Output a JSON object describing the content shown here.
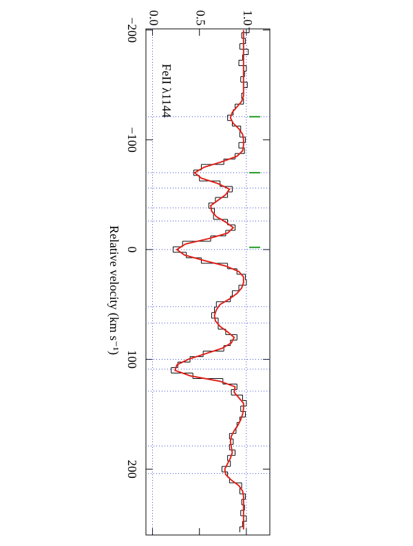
{
  "chart_data": {
    "type": "line",
    "annotation": "FeII λ1144",
    "x_label": "Relative velocity (km s⁻¹)",
    "xlim": [
      -201,
      260
    ],
    "xticks": [
      {
        "value": -200,
        "label": "−200"
      },
      {
        "value": -100,
        "label": "−100"
      },
      0,
      100,
      200
    ],
    "ylim": [
      -0.07,
      1.25
    ],
    "yticks": [
      {
        "value": 0,
        "label": "0.0"
      },
      0.5,
      {
        "value": 1,
        "label": "1.0"
      }
    ],
    "grid_y": [
      0,
      1
    ],
    "components": [
      -121,
      -70,
      -56,
      -38,
      -26,
      0,
      52,
      67,
      100,
      109,
      129,
      179,
      204
    ],
    "markers": [
      -121,
      -70,
      -2
    ],
    "marker_color": "#1a9a1a",
    "component_color": "#3344cc",
    "x": [
      -200,
      -195,
      -190,
      -185,
      -180,
      -175,
      -170,
      -165,
      -160,
      -155,
      -150,
      -145,
      -140,
      -135,
      -130,
      -125,
      -120,
      -115,
      -110,
      -105,
      -100,
      -95,
      -90,
      -85,
      -80,
      -75,
      -70,
      -65,
      -60,
      -55,
      -50,
      -45,
      -40,
      -35,
      -30,
      -25,
      -20,
      -15,
      -10,
      -5,
      0,
      5,
      10,
      15,
      20,
      25,
      30,
      35,
      40,
      45,
      50,
      55,
      60,
      65,
      70,
      75,
      80,
      85,
      90,
      95,
      100,
      105,
      110,
      115,
      120,
      125,
      130,
      135,
      140,
      145,
      150,
      155,
      160,
      165,
      170,
      175,
      180,
      185,
      190,
      195,
      200,
      205,
      210,
      215,
      220,
      225,
      230,
      235,
      240,
      245,
      250,
      255
    ],
    "series": [
      {
        "name": "data",
        "color": "#000000",
        "step": true,
        "values": [
          1.03,
          0.95,
          0.99,
          0.93,
          1.02,
          0.96,
          0.92,
          1.0,
          0.98,
          0.94,
          1.01,
          0.97,
          0.95,
          0.97,
          0.88,
          0.86,
          0.8,
          0.85,
          0.94,
          0.93,
          0.99,
          0.92,
          0.98,
          0.88,
          0.76,
          0.52,
          0.44,
          0.5,
          0.72,
          0.85,
          0.8,
          0.67,
          0.6,
          0.66,
          0.65,
          0.8,
          0.88,
          0.78,
          0.62,
          0.32,
          0.22,
          0.36,
          0.52,
          0.8,
          0.9,
          0.99,
          1.0,
          0.92,
          0.85,
          0.83,
          0.68,
          0.66,
          0.63,
          0.7,
          0.7,
          0.78,
          0.9,
          0.83,
          0.76,
          0.54,
          0.4,
          0.27,
          0.2,
          0.43,
          0.75,
          0.9,
          0.84,
          0.96,
          1.0,
          0.94,
          0.99,
          0.93,
          0.9,
          0.89,
          0.82,
          0.86,
          0.82,
          0.88,
          0.8,
          0.83,
          0.74,
          0.8,
          0.82,
          0.95,
          0.93,
          0.99,
          0.95,
          0.98,
          0.94,
          1.0,
          0.96,
          0.93
        ]
      },
      {
        "name": "fit",
        "color": "#e0201a",
        "step": false,
        "values": [
          0.97,
          0.97,
          0.97,
          0.97,
          0.97,
          0.97,
          0.97,
          0.97,
          0.97,
          0.97,
          0.97,
          0.97,
          0.97,
          0.95,
          0.9,
          0.85,
          0.83,
          0.86,
          0.92,
          0.96,
          0.97,
          0.97,
          0.96,
          0.9,
          0.74,
          0.55,
          0.45,
          0.52,
          0.7,
          0.82,
          0.78,
          0.7,
          0.62,
          0.63,
          0.68,
          0.78,
          0.86,
          0.8,
          0.6,
          0.35,
          0.26,
          0.34,
          0.55,
          0.78,
          0.92,
          0.97,
          0.97,
          0.95,
          0.9,
          0.82,
          0.72,
          0.68,
          0.66,
          0.67,
          0.72,
          0.8,
          0.87,
          0.84,
          0.74,
          0.56,
          0.38,
          0.26,
          0.24,
          0.4,
          0.72,
          0.88,
          0.87,
          0.92,
          0.97,
          0.97,
          0.96,
          0.94,
          0.91,
          0.87,
          0.84,
          0.83,
          0.84,
          0.85,
          0.83,
          0.8,
          0.77,
          0.78,
          0.84,
          0.92,
          0.96,
          0.97,
          0.97,
          0.97,
          0.97,
          0.97,
          0.97,
          0.97
        ]
      }
    ]
  }
}
